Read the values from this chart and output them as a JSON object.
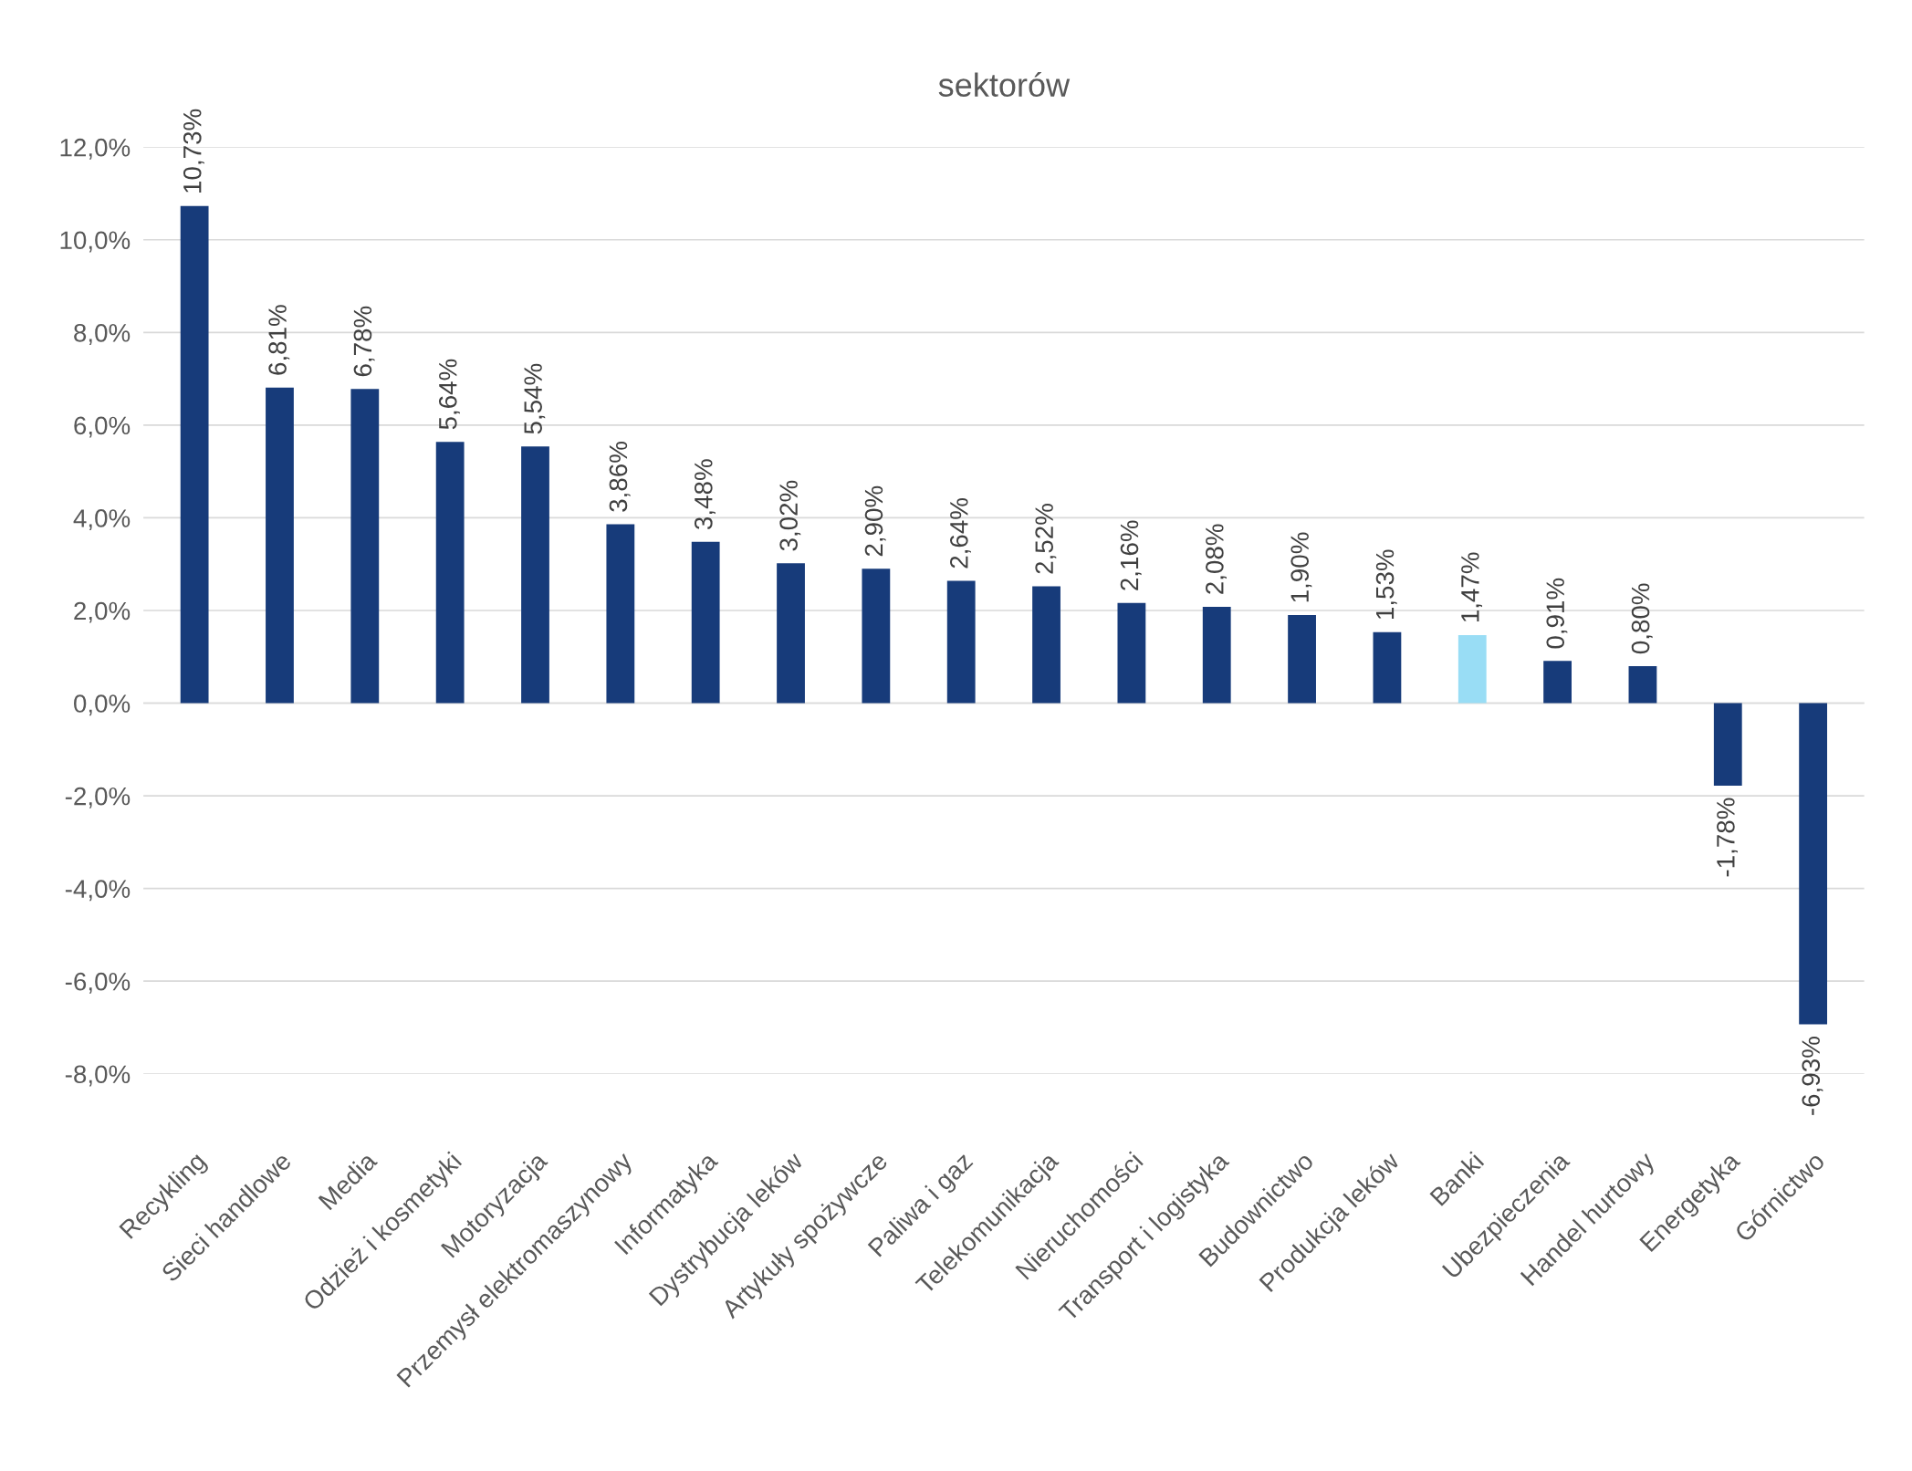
{
  "chart_data": {
    "type": "bar",
    "title": "sektorów",
    "categories": [
      "Recykling",
      "Sieci handlowe",
      "Media",
      "Odzież i kosmetyki",
      "Motoryzacja",
      "Przemysł elektromaszynowy",
      "Informatyka",
      "Dystrybucja leków",
      "Artykuły spożywcze",
      "Paliwa i gaz",
      "Telekomunikacja",
      "Nieruchomości",
      "Transport i logistyka",
      "Budownictwo",
      "Produkcja leków",
      "Banki",
      "Ubezpieczenia",
      "Handel hurtowy",
      "Energetyka",
      "Górnictwo"
    ],
    "values": [
      10.73,
      6.81,
      6.78,
      5.64,
      5.54,
      3.86,
      3.48,
      3.02,
      2.9,
      2.64,
      2.52,
      2.16,
      2.08,
      1.9,
      1.53,
      1.47,
      0.91,
      0.8,
      -1.78,
      -6.93
    ],
    "value_labels": [
      "10,73%",
      "6,81%",
      "6,78%",
      "5,64%",
      "5,54%",
      "3,86%",
      "3,48%",
      "3,02%",
      "2,90%",
      "2,64%",
      "2,52%",
      "2,16%",
      "2,08%",
      "1,90%",
      "1,53%",
      "1,47%",
      "0,91%",
      "0,80%",
      "-1,78%",
      "-6,93%"
    ],
    "colors": [
      "#173b7a",
      "#173b7a",
      "#173b7a",
      "#173b7a",
      "#173b7a",
      "#173b7a",
      "#173b7a",
      "#173b7a",
      "#173b7a",
      "#173b7a",
      "#173b7a",
      "#173b7a",
      "#173b7a",
      "#173b7a",
      "#173b7a",
      "#99ddf5",
      "#173b7a",
      "#173b7a",
      "#173b7a",
      "#173b7a"
    ],
    "ylim": [
      -8,
      12
    ],
    "yticks": [
      {
        "value": -8,
        "label": "-8,0%"
      },
      {
        "value": -6,
        "label": "-6,0%"
      },
      {
        "value": -4,
        "label": "-4,0%"
      },
      {
        "value": -2,
        "label": "-2,0%"
      },
      {
        "value": 0,
        "label": "0,0%"
      },
      {
        "value": 2,
        "label": "2,0%"
      },
      {
        "value": 4,
        "label": "4,0%"
      },
      {
        "value": 6,
        "label": "6,0%"
      },
      {
        "value": 8,
        "label": "8,0%"
      },
      {
        "value": 10,
        "label": "10,0%"
      },
      {
        "value": 12,
        "label": "12,0%"
      }
    ],
    "grid": "y",
    "legend": false
  }
}
